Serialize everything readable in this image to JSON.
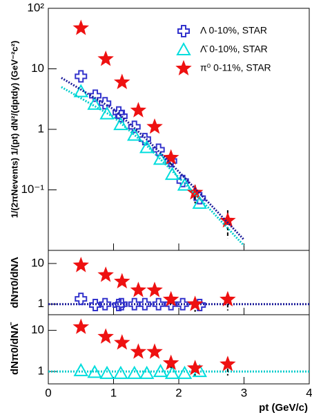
{
  "chart_data": [
    {
      "type": "scatter",
      "log_y": true,
      "ylabel": "1/(2πNevents) 1/(pt) dN²/(dptdy)   (GeV⁻²c²)",
      "xlim": [
        0,
        4
      ],
      "ylim": [
        0.01,
        100
      ],
      "yticks": [
        {
          "value": 100,
          "label": "10²"
        },
        10,
        1,
        {
          "value": 0.1,
          "label": "10⁻¹"
        }
      ],
      "series": [
        {
          "name": "Λ 0-10%, STAR",
          "color": "#3333cc",
          "marker": "cross",
          "x": [
            0.5,
            0.72,
            0.87,
            1.08,
            1.12,
            1.32,
            1.48,
            1.69,
            1.88,
            2.06,
            2.32
          ],
          "values": [
            7.5,
            3.6,
            2.7,
            1.9,
            1.65,
            1.1,
            0.69,
            0.46,
            0.3,
            0.14,
            0.073
          ]
        },
        {
          "name": "Λ̄ 0-10%, STAR",
          "color": "#00dddd",
          "marker": "triangle",
          "x": [
            0.5,
            0.71,
            0.9,
            1.11,
            1.32,
            1.51,
            1.72,
            1.9,
            2.09,
            2.32
          ],
          "values": [
            4.2,
            2.6,
            1.8,
            1.2,
            0.8,
            0.5,
            0.32,
            0.18,
            0.12,
            0.06
          ]
        },
        {
          "name": "π⁰ 0-11%, STAR",
          "color": "#ee1111",
          "marker": "star",
          "x": [
            0.5,
            0.88,
            1.13,
            1.38,
            1.63,
            1.88,
            2.25,
            2.75
          ],
          "values": [
            47,
            14.5,
            6,
            2.05,
            1.1,
            0.34,
            0.09,
            0.031
          ],
          "errors": [
            null,
            null,
            null,
            null,
            null,
            0.08,
            0.03,
            0.015
          ]
        },
        {
          "color": "#1a1a99",
          "style": "dotted",
          "x": [
            0.2,
            1,
            1.5,
            2,
            2.5,
            3
          ],
          "values": [
            7.1,
            2.15,
            0.7,
            0.2,
            0.055,
            0.015
          ]
        },
        {
          "color": "#00cccc",
          "style": "dotted",
          "x": [
            0.2,
            1,
            1.5,
            2,
            2.5,
            3
          ],
          "values": [
            5,
            1.6,
            0.55,
            0.16,
            0.045,
            0.012
          ]
        }
      ]
    },
    {
      "type": "scatter",
      "log_y": true,
      "ylabel": "dNπ0/dNΛ",
      "xlim": [
        0,
        4
      ],
      "ylim": [
        0.55,
        21
      ],
      "yticks": [
        1,
        10
      ],
      "series": [
        {
          "color": "#1a1a99",
          "style": "dotted",
          "x": [
            0,
            4
          ],
          "values": [
            1,
            1
          ]
        },
        {
          "color": "#3333cc",
          "marker": "cross",
          "x": [
            0.5,
            0.72,
            0.87,
            1.08,
            1.12,
            1.32,
            1.48,
            1.69,
            1.88,
            2.06,
            2.32
          ],
          "values": [
            1.35,
            0.95,
            1.0,
            0.95,
            1.0,
            1.0,
            1.0,
            1.0,
            1.0,
            1.0,
            0.95
          ]
        },
        {
          "color": "#ee1111",
          "marker": "star",
          "x": [
            0.5,
            0.88,
            1.13,
            1.38,
            1.63,
            1.88,
            2.25,
            2.75
          ],
          "values": [
            9,
            5.2,
            3.6,
            2.2,
            2.2,
            1.3,
            1.0,
            1.3
          ],
          "errors": [
            null,
            null,
            null,
            null,
            null,
            0.3,
            0.35,
            0.6
          ]
        }
      ]
    },
    {
      "type": "scatter",
      "log_y": true,
      "ylabel": "dNπ0/dNΛ̄",
      "xlabel": "pt (GeV/c)",
      "xlim": [
        0,
        4
      ],
      "ylim": [
        0.5,
        24
      ],
      "xticks": [
        0,
        1,
        2,
        3,
        4
      ],
      "yticks": [
        1,
        10
      ],
      "series": [
        {
          "color": "#00cccc",
          "style": "dotted",
          "x": [
            0,
            4
          ],
          "values": [
            1,
            1
          ]
        },
        {
          "color": "#00dddd",
          "marker": "triangle",
          "x": [
            0.5,
            0.71,
            0.9,
            1.11,
            1.32,
            1.51,
            1.72,
            1.9,
            2.09,
            2.32
          ],
          "values": [
            1.05,
            0.95,
            0.9,
            0.9,
            0.9,
            0.9,
            1.0,
            0.9,
            0.9,
            1.0
          ]
        },
        {
          "color": "#ee1111",
          "marker": "star",
          "x": [
            0.5,
            0.88,
            1.13,
            1.38,
            1.63,
            1.88,
            2.25,
            2.75
          ],
          "values": [
            12,
            7,
            5,
            3,
            3,
            1.6,
            1.2,
            1.5
          ],
          "errors": [
            null,
            null,
            null,
            null,
            null,
            0.4,
            0.4,
            0.7
          ]
        }
      ]
    }
  ]
}
